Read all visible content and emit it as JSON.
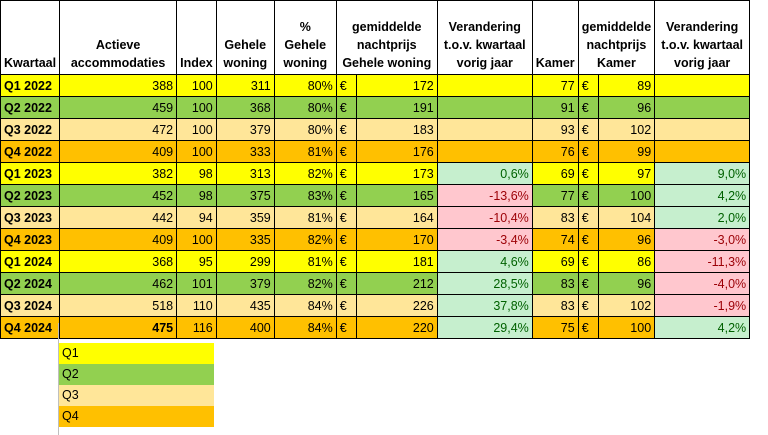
{
  "headers": {
    "kwartaal": "Kwartaal",
    "actieve": "Actieve accommodaties",
    "index": "Index",
    "gehele": "Gehele woning",
    "pct_gehele": "% Gehele woning",
    "gem_gehele": "gemiddelde nachtprijs Gehele woning",
    "ver_gehele": "Verandering t.o.v. kwartaal vorig jaar",
    "kamer": "Kamer",
    "gem_kamer": "gemiddelde nachtprijs Kamer",
    "ver_kamer": "Verandering t.o.v. kwartaal vorig jaar"
  },
  "euro_symbol": "€",
  "rows": [
    {
      "q": "q1",
      "kwartaal": "Q1 2022",
      "actieve": "388",
      "index": "100",
      "gehele": "311",
      "pct": "80%",
      "gem_gehele": "172",
      "ver_gehele": "",
      "kamer": "77",
      "gem_kamer": "89",
      "ver_kamer": ""
    },
    {
      "q": "q2",
      "kwartaal": "Q2 2022",
      "actieve": "459",
      "index": "100",
      "gehele": "368",
      "pct": "80%",
      "gem_gehele": "191",
      "ver_gehele": "",
      "kamer": "91",
      "gem_kamer": "96",
      "ver_kamer": ""
    },
    {
      "q": "q3",
      "kwartaal": "Q3 2022",
      "actieve": "472",
      "index": "100",
      "gehele": "379",
      "pct": "80%",
      "gem_gehele": "183",
      "ver_gehele": "",
      "kamer": "93",
      "gem_kamer": "102",
      "ver_kamer": ""
    },
    {
      "q": "q4",
      "kwartaal": "Q4 2022",
      "actieve": "409",
      "index": "100",
      "gehele": "333",
      "pct": "81%",
      "gem_gehele": "176",
      "ver_gehele": "",
      "kamer": "76",
      "gem_kamer": "99",
      "ver_kamer": ""
    },
    {
      "q": "q1",
      "kwartaal": "Q1 2023",
      "actieve": "382",
      "index": "98",
      "gehele": "313",
      "pct": "82%",
      "gem_gehele": "173",
      "ver_gehele": "0,6%",
      "kamer": "69",
      "gem_kamer": "97",
      "ver_kamer": "9,0%"
    },
    {
      "q": "q2",
      "kwartaal": "Q2 2023",
      "actieve": "452",
      "index": "98",
      "gehele": "375",
      "pct": "83%",
      "gem_gehele": "165",
      "ver_gehele": "-13,6%",
      "kamer": "77",
      "gem_kamer": "100",
      "ver_kamer": "4,2%"
    },
    {
      "q": "q3",
      "kwartaal": "Q3 2023",
      "actieve": "442",
      "index": "94",
      "gehele": "359",
      "pct": "81%",
      "gem_gehele": "164",
      "ver_gehele": "-10,4%",
      "kamer": "83",
      "gem_kamer": "104",
      "ver_kamer": "2,0%"
    },
    {
      "q": "q4",
      "kwartaal": "Q4 2023",
      "actieve": "409",
      "index": "100",
      "gehele": "335",
      "pct": "82%",
      "gem_gehele": "170",
      "ver_gehele": "-3,4%",
      "kamer": "74",
      "gem_kamer": "96",
      "ver_kamer": "-3,0%"
    },
    {
      "q": "q1",
      "kwartaal": "Q1 2024",
      "actieve": "368",
      "index": "95",
      "gehele": "299",
      "pct": "81%",
      "gem_gehele": "181",
      "ver_gehele": "4,6%",
      "kamer": "69",
      "gem_kamer": "86",
      "ver_kamer": "-11,3%"
    },
    {
      "q": "q2",
      "kwartaal": "Q2 2024",
      "actieve": "462",
      "index": "101",
      "gehele": "379",
      "pct": "82%",
      "gem_gehele": "212",
      "ver_gehele": "28,5%",
      "kamer": "83",
      "gem_kamer": "96",
      "ver_kamer": "-4,0%"
    },
    {
      "q": "q3",
      "kwartaal": "Q3 2024",
      "actieve": "518",
      "index": "110",
      "gehele": "435",
      "pct": "84%",
      "gem_gehele": "226",
      "ver_gehele": "37,8%",
      "kamer": "83",
      "gem_kamer": "102",
      "ver_kamer": "-1,9%"
    },
    {
      "q": "q4",
      "kwartaal": "Q4 2024",
      "actieve": "475",
      "index": "116",
      "gehele": "400",
      "pct": "84%",
      "gem_gehele": "220",
      "ver_gehele": "29,4%",
      "kamer": "75",
      "gem_kamer": "100",
      "ver_kamer": "4,2%",
      "bold_actieve": true
    }
  ],
  "legend": [
    {
      "q": "q1",
      "label": "Q1"
    },
    {
      "q": "q2",
      "label": "Q2"
    },
    {
      "q": "q3",
      "label": "Q3"
    },
    {
      "q": "q4",
      "label": "Q4"
    }
  ],
  "colors": {
    "q1": "#ffff00",
    "q2": "#92d050",
    "q3": "#ffe699",
    "q4": "#ffc000",
    "positive_bg": "#c6efce",
    "positive_text": "#006100",
    "negative_bg": "#ffc7ce",
    "negative_text": "#9c0006"
  }
}
